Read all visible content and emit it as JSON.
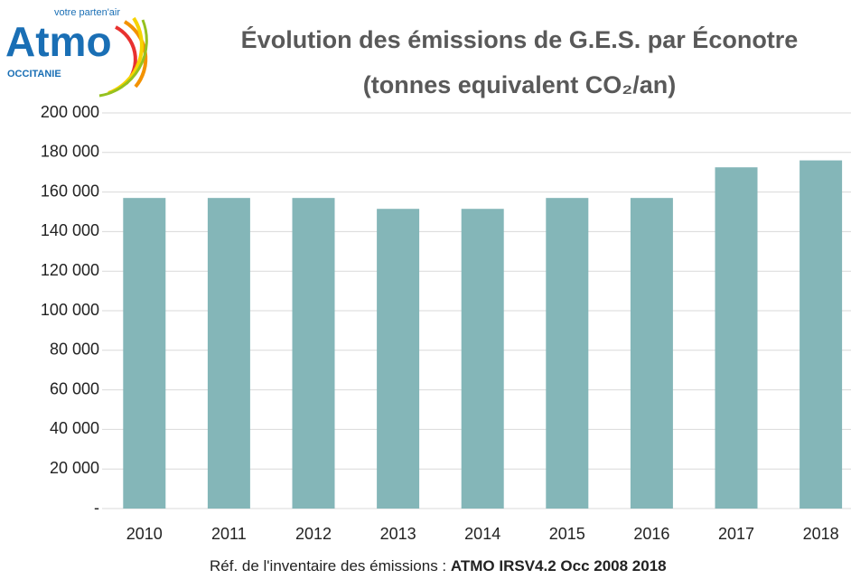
{
  "logo": {
    "name": "Atmo",
    "tagline": "votre parten'air",
    "region": "OCCITANIE"
  },
  "chart_data": {
    "type": "bar",
    "title": "Évolution des émissions de G.E.S. par Éconotre",
    "subtitle": "(tonnes equivalent CO₂/an)",
    "categories": [
      "2010",
      "2011",
      "2012",
      "2013",
      "2014",
      "2015",
      "2016",
      "2017",
      "2018"
    ],
    "values": [
      157000,
      157000,
      157000,
      151500,
      151500,
      157000,
      157000,
      172500,
      176000
    ],
    "color": "#84b6b8",
    "ylim": [
      0,
      200000
    ],
    "yticks": [
      {
        "value": 0,
        "label": "-"
      },
      {
        "value": 20000,
        "label": "20 000"
      },
      {
        "value": 40000,
        "label": "40 000"
      },
      {
        "value": 60000,
        "label": "60 000"
      },
      {
        "value": 80000,
        "label": "80 000"
      },
      {
        "value": 100000,
        "label": "100 000"
      },
      {
        "value": 120000,
        "label": "120 000"
      },
      {
        "value": 140000,
        "label": "140 000"
      },
      {
        "value": 160000,
        "label": "160 000"
      },
      {
        "value": 180000,
        "label": "180 000"
      },
      {
        "value": 200000,
        "label": "200 000"
      }
    ],
    "grid": true,
    "source_prefix": "Réf. de l'inventaire des émissions : ",
    "source": "ATMO IRSV4.2 Occ 2008 2018"
  }
}
